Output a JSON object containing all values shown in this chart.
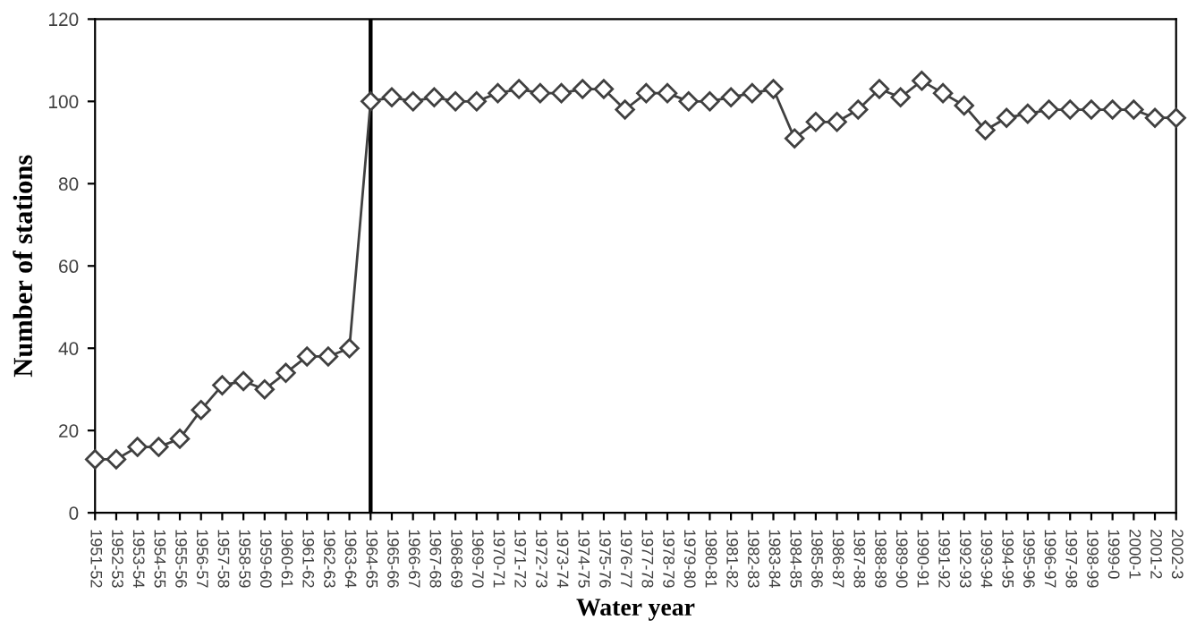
{
  "chart_data": {
    "type": "line",
    "xlabel": "Water year",
    "ylabel": "Number of stations",
    "categories": [
      "1951-52",
      "1952-53",
      "1953-54",
      "1954-55",
      "1955-56",
      "1956-57",
      "1957-58",
      "1958-59",
      "1959-60",
      "1960-61",
      "1961-62",
      "1962-63",
      "1963-64",
      "1964-65",
      "1965-66",
      "1966-67",
      "1967-68",
      "1968-69",
      "1969-70",
      "1970-71",
      "1971-72",
      "1972-73",
      "1973-74",
      "1974-75",
      "1975-76",
      "1976-77",
      "1977-78",
      "1978-79",
      "1979-80",
      "1980-81",
      "1981-82",
      "1982-83",
      "1983-84",
      "1984-85",
      "1985-86",
      "1986-87",
      "1987-88",
      "1988-89",
      "1989-90",
      "1990-91",
      "1991-92",
      "1992-93",
      "1993-94",
      "1994-95",
      "1995-96",
      "1996-97",
      "1997-98",
      "1998-99",
      "1999-0",
      "2000-1",
      "2001-2",
      "2002-3"
    ],
    "series": [
      {
        "color": "#404040",
        "values": [
          13,
          13,
          16,
          16,
          18,
          25,
          31,
          32,
          30,
          34,
          38,
          38,
          40,
          100,
          101,
          100,
          101,
          100,
          100,
          102,
          103,
          102,
          102,
          103,
          103,
          98,
          102,
          102,
          100,
          100,
          101,
          102,
          103,
          91,
          95,
          95,
          98,
          103,
          101,
          105,
          102,
          99,
          93,
          96,
          97,
          98,
          98,
          98,
          98,
          98,
          96,
          96
        ]
      }
    ],
    "ylim": [
      0,
      120
    ],
    "yticks": [
      0,
      20,
      40,
      60,
      80,
      100,
      120
    ],
    "marker": "diamond",
    "line_style": "solid",
    "grid": false,
    "ref_lines": [
      {
        "axis": "x",
        "value": "1964-65",
        "color": "#000000",
        "line_style": "solid"
      }
    ]
  }
}
